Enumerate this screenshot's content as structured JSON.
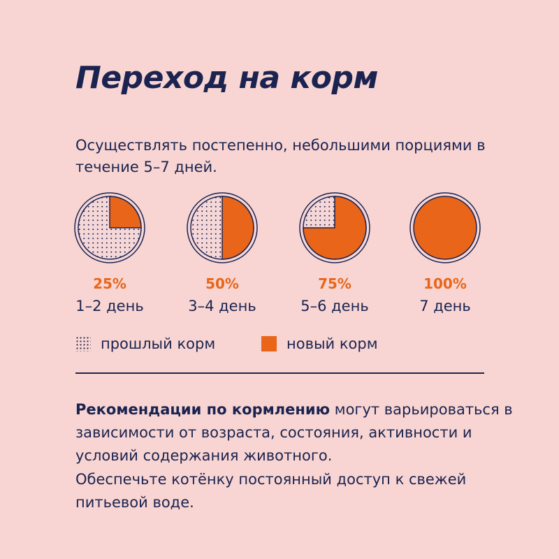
{
  "title": "Переход на корм",
  "subtitle": "Осуществлять постепенно, небольшими порциями в течение 5–7 дней.",
  "colors": {
    "background": "#f8d5d2",
    "new_food": "#e8651a",
    "text": "#1b2350",
    "circle_fill": "#f6d7d8"
  },
  "chart_data": {
    "type": "pie",
    "series": [
      {
        "name": "новый корм",
        "values": [
          25,
          50,
          75,
          100
        ]
      },
      {
        "name": "прошлый корм",
        "values": [
          75,
          50,
          25,
          0
        ]
      }
    ],
    "categories": [
      "1–2 день",
      "3–4 день",
      "5–6 день",
      "7 день"
    ],
    "pct_labels": [
      "25%",
      "50%",
      "75%",
      "100%"
    ],
    "legend": [
      {
        "label": "прошлый корм",
        "pattern": "dotted"
      },
      {
        "label": "новый корм",
        "pattern": "solid"
      }
    ]
  },
  "recommendations": {
    "bold": "Рекомендации по кормлению",
    "rest": " могут варьироваться в зависимости от возраста, состояния, активности и условий содержания животного.",
    "water": "Обеспечьте котёнку постоянный доступ к свежей питьевой воде."
  }
}
